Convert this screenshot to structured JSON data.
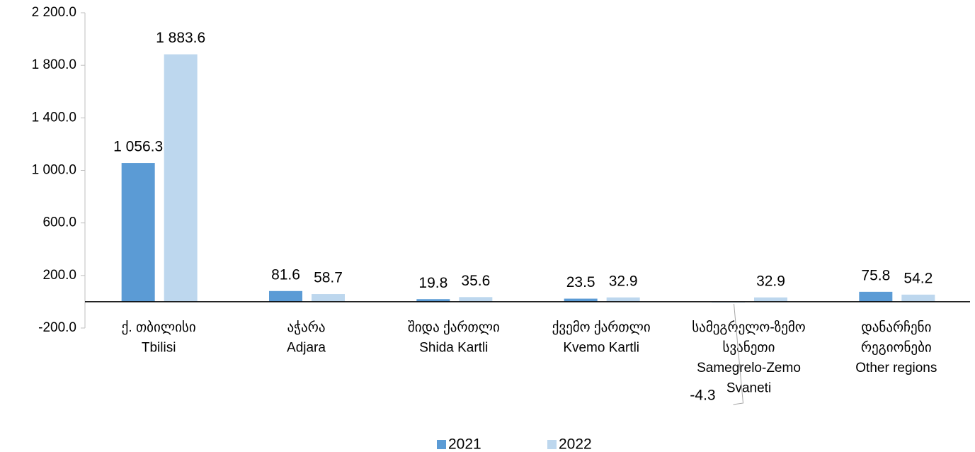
{
  "chart_data": {
    "type": "bar",
    "categories": [
      "ქ. თბილისი\nTbilisi",
      "აჭარა\nAdjara",
      "შიდა ქართლი\nShida Kartli",
      "ქვემო ქართლი\nKvemo Kartli",
      "სამეგრელო-ზემო\nსვანეთი\nSamegrelo-Zemo\nSvaneti",
      "დანარჩენი\nრეგიონები\nOther regions"
    ],
    "series": [
      {
        "name": "2021",
        "color": "#5b9bd5",
        "values": [
          1056.3,
          81.6,
          19.8,
          23.5,
          -4.3,
          75.8
        ],
        "value_labels": [
          "1 056.3",
          "81.6",
          "19.8",
          "23.5",
          "-4.3",
          "75.8"
        ]
      },
      {
        "name": "2022",
        "color": "#bdd7ee",
        "values": [
          1883.6,
          58.7,
          35.6,
          32.9,
          32.9,
          54.2
        ],
        "value_labels": [
          "1 883.6",
          "58.7",
          "35.6",
          "32.9",
          "32.9",
          "54.2"
        ]
      }
    ],
    "ylim": [
      -200,
      2200
    ],
    "yticks": [
      {
        "value": -200,
        "label": "-200.0"
      },
      {
        "value": 200,
        "label": "200.0"
      },
      {
        "value": 600,
        "label": "600.0"
      },
      {
        "value": 1000,
        "label": "1 000.0"
      },
      {
        "value": 1400,
        "label": "1 400.0"
      },
      {
        "value": 1800,
        "label": "1 800.0"
      },
      {
        "value": 2200,
        "label": "2 200.0"
      }
    ],
    "legend": "bottom"
  }
}
